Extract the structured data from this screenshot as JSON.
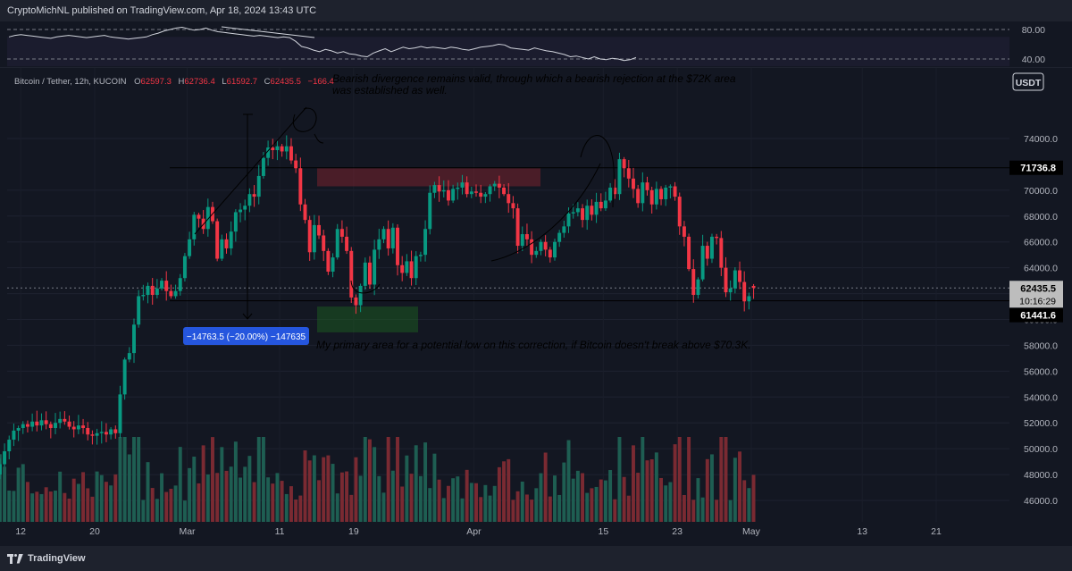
{
  "header": {
    "published": "CryptoMichNL published on TradingView.com, Apr 18, 2024 13:43 UTC"
  },
  "symbol_line": {
    "name": "Bitcoin / Tether, 12h, KUCOIN",
    "o_label": "O",
    "o": "62597.3",
    "h_label": "H",
    "h": "62736.4",
    "l_label": "L",
    "l": "61592.7",
    "c_label": "C",
    "c": "62435.5",
    "change": "−166.4"
  },
  "currency": "USDT",
  "annotations": {
    "top_note_line1": "Bearish divergence remains valid, through which a bearish rejection at the $72K area",
    "top_note_line2": "was established as well.",
    "bottom_note": "My primary area for a potential low on this correction, if Bitcoin doesn't break above $70.3K.",
    "measure_label": "−14763.5 (−20.00%) −147635"
  },
  "price_tags": {
    "resistance": "71736.8",
    "last": "62435.5",
    "countdown": "10:16:29",
    "support": "61441.6"
  },
  "footer": {
    "brand": "TradingView"
  },
  "colors": {
    "background": "#131722",
    "up": "#089981",
    "down": "#f23645",
    "resistance_zone": "#b22833",
    "support_zone": "#1b5e20",
    "rsi_line": "#d1d4dc",
    "volume_up": "#1e5e52",
    "volume_down": "#7a2a32"
  },
  "chart_data": [
    {
      "type": "line",
      "name": "RSI panel",
      "ylim": [
        30,
        90
      ],
      "yticks": [
        "80.00",
        "40.00"
      ],
      "x_range": [
        "2024-02-08",
        "2024-04-18"
      ],
      "values": [
        70,
        72,
        73,
        72,
        71,
        70,
        69,
        68,
        70,
        71,
        72,
        71,
        70,
        69,
        70,
        71,
        72,
        70,
        69,
        68,
        67,
        68,
        69,
        70,
        73,
        75,
        78,
        80,
        82,
        83,
        81,
        79,
        80,
        82,
        79,
        77,
        76,
        75,
        74,
        73,
        72,
        71,
        72,
        71,
        70,
        69,
        70,
        69,
        64,
        57,
        55,
        52,
        50,
        53,
        51,
        48,
        50,
        47,
        46,
        44,
        43,
        48,
        51,
        54,
        50,
        53,
        56,
        54,
        55,
        57,
        55,
        56,
        55,
        54,
        56,
        55,
        53,
        52,
        54,
        56,
        57,
        58,
        60,
        59,
        55,
        54,
        53,
        52,
        55,
        53,
        51,
        50,
        48,
        46,
        43,
        44,
        42,
        40,
        43,
        40,
        39,
        41,
        40,
        38,
        39,
        42
      ]
    },
    {
      "type": "candlestick",
      "name": "Bitcoin / Tether, 12h, KUCOIN",
      "interval": "12h",
      "x_range": [
        "2024-02-08",
        "2024-05-28"
      ],
      "x_ticks": [
        "12",
        "20",
        "Mar",
        "11",
        "19",
        "Apr",
        "15",
        "23",
        "May",
        "13",
        "21"
      ],
      "y_ticks": [
        "46000.0",
        "48000.0",
        "50000.0",
        "52000.0",
        "54000.0",
        "56000.0",
        "58000.0",
        "60000.0",
        "62000.0",
        "64000.0",
        "66000.0",
        "68000.0",
        "70000.0",
        "74000.0"
      ],
      "ylim": [
        44500,
        78000
      ],
      "closes": [
        48200,
        48500,
        48000,
        48800,
        49800,
        50700,
        51400,
        51600,
        51900,
        51700,
        52100,
        51800,
        52200,
        51900,
        51600,
        52000,
        52300,
        52100,
        51700,
        51500,
        51800,
        51600,
        51100,
        51000,
        51200,
        51300,
        51100,
        51500,
        51200,
        54200,
        56900,
        57400,
        59600,
        61800,
        61900,
        62600,
        61900,
        62400,
        63000,
        62200,
        61800,
        62200,
        63200,
        64900,
        66200,
        68100,
        67800,
        67000,
        68700,
        67600,
        64700,
        66200,
        65500,
        66800,
        68300,
        68500,
        68800,
        69700,
        69500,
        71100,
        72500,
        73300,
        73100,
        73400,
        73000,
        73400,
        72300,
        71700,
        68900,
        67700,
        65200,
        67300,
        66500,
        65300,
        63700,
        64800,
        67000,
        66400,
        65300,
        61700,
        61100,
        62600,
        64400,
        62700,
        65400,
        66200,
        67000,
        65500,
        67100,
        64200,
        63600,
        64500,
        63200,
        64900,
        65000,
        67000,
        69800,
        70400,
        69900,
        70000,
        69200,
        70100,
        70200,
        70600,
        69700,
        69900,
        69800,
        69500,
        69700,
        70300,
        70500,
        70200,
        69700,
        69000,
        68600,
        65700,
        66600,
        66200,
        65000,
        65300,
        66000,
        65400,
        64800,
        66000,
        66700,
        67200,
        68200,
        68300,
        68600,
        67700,
        68800,
        68100,
        69100,
        68600,
        69200,
        70200,
        69700,
        72400,
        71700,
        70900,
        70100,
        69000,
        70600,
        70000,
        68900,
        70100,
        69300,
        70200,
        70300,
        69500,
        67200,
        66400,
        63900,
        61900,
        63100,
        65700,
        64700,
        66400,
        66300,
        64000,
        62100,
        62400,
        63800,
        62900,
        61400,
        61800,
        62435.5
      ],
      "last": {
        "o": 62597.3,
        "h": 62736.4,
        "l": 61592.7,
        "c": 62435.5
      },
      "resistance_zone": [
        70300,
        71700
      ],
      "support_zone": [
        59000,
        61000
      ],
      "lines": [
        71736.8,
        61441.6
      ]
    }
  ]
}
